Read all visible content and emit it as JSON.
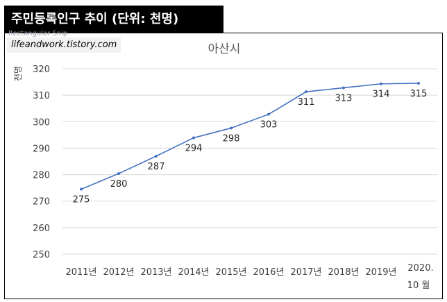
{
  "header": {
    "title": "주민등록인구 추이 (단위: 천명)"
  },
  "overlay": {
    "text": "Rectangular Snip"
  },
  "watermark": {
    "text": "lifeandwork.tistory.com"
  },
  "colors": {
    "line": "#4472c4",
    "grid": "#d9d9d9",
    "header_bg": "#000000"
  },
  "chart_data": {
    "type": "line",
    "title": "아산시",
    "ylabel": "천명",
    "xlabel": "",
    "ylim": [
      250,
      320
    ],
    "yticks": [
      250,
      260,
      270,
      280,
      290,
      300,
      310,
      320
    ],
    "categories": [
      "2011년",
      "2012년",
      "2013년",
      "2014년",
      "2015년",
      "2016년",
      "2017년",
      "2018년",
      "2019년",
      "2020. 10 월"
    ],
    "series": [
      {
        "name": "",
        "values": [
          274.5,
          280.4,
          287.0,
          293.9,
          297.6,
          302.8,
          311.3,
          312.8,
          314.3,
          314.5
        ],
        "labels": [
          "275",
          "280",
          "287",
          "294",
          "298",
          "303",
          "311",
          "313",
          "314",
          "315"
        ]
      }
    ],
    "grid": true,
    "legend": "none"
  }
}
